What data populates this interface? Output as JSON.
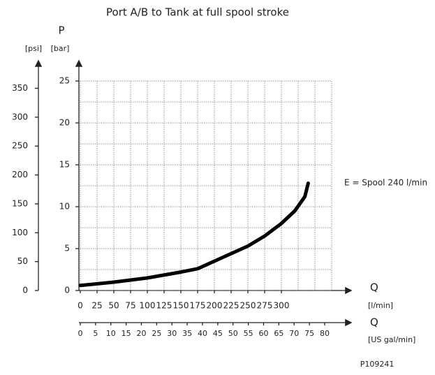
{
  "chart_data": {
    "type": "line",
    "title": "Port A/B to Tank at full spool stroke",
    "y_label": "P",
    "y_unit": "[bar]",
    "y2_unit": "[psi]",
    "x_label": "Q",
    "x_unit": "[l/min]",
    "x2_label": "Q",
    "x2_unit": "[US gal/min]",
    "ylim": [
      0,
      25
    ],
    "yticks": [
      0,
      5,
      10,
      15,
      20,
      25
    ],
    "ygrid": [
      0,
      2.5,
      5,
      7.5,
      10,
      12.5,
      15,
      17.5,
      20,
      22.5,
      25
    ],
    "y2lim": [
      0,
      362.6
    ],
    "y2ticks": [
      0,
      50,
      100,
      150,
      200,
      250,
      300,
      350
    ],
    "xlim": [
      0,
      375
    ],
    "xticks": [
      0,
      25,
      50,
      75,
      100,
      125,
      150,
      175,
      200,
      225,
      250,
      275,
      300
    ],
    "xgrid": [
      0,
      25,
      50,
      75,
      100,
      125,
      150,
      175,
      200,
      225,
      250,
      275,
      300,
      325,
      350,
      375
    ],
    "x2lim": [
      0,
      80
    ],
    "x2ticks": [
      0,
      5,
      10,
      15,
      20,
      25,
      30,
      35,
      40,
      45,
      50,
      55,
      60,
      65,
      70,
      75,
      80
    ],
    "grid": true,
    "x": [
      0,
      50,
      100,
      150,
      175,
      200,
      250,
      275,
      300,
      320,
      335,
      340
    ],
    "series": [
      {
        "color": "#000000",
        "values": [
          0.6,
          1.0,
          1.5,
          2.2,
          2.6,
          3.5,
          5.3,
          6.5,
          8.0,
          9.5,
          11.2,
          12.8
        ]
      }
    ],
    "annotations": [
      "E = Spool 240 l/min"
    ],
    "code": "P109241"
  }
}
